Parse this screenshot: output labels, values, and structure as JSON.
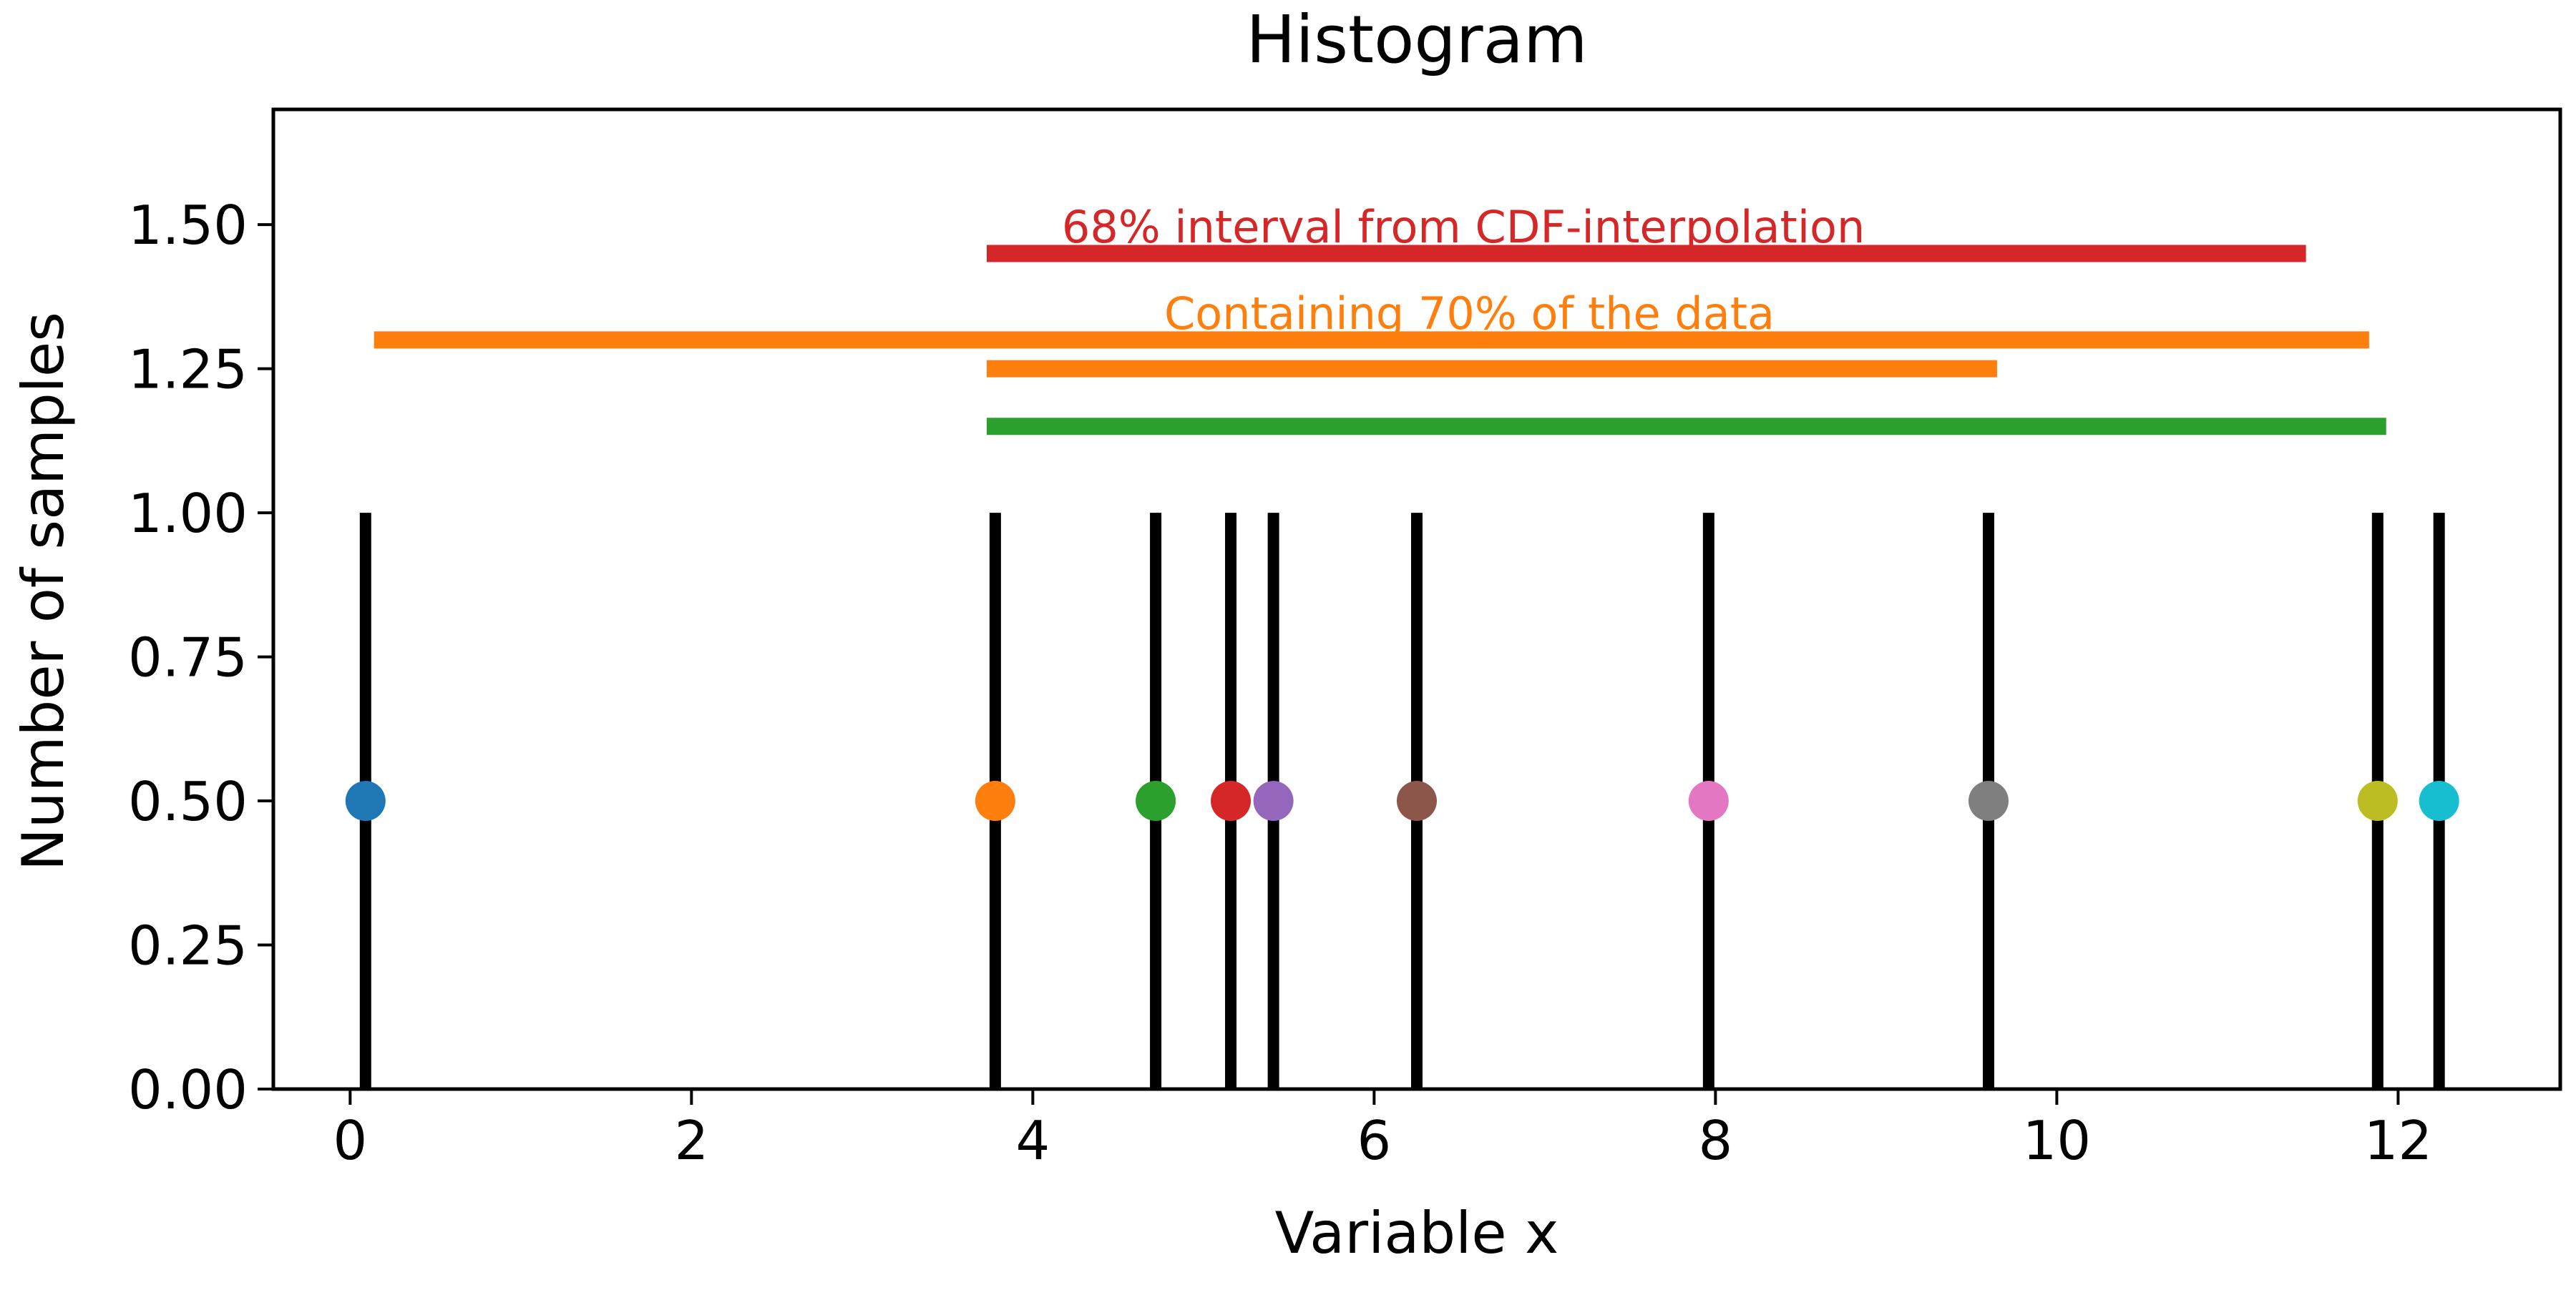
{
  "chart_data": {
    "type": "histogram",
    "title": "Histogram",
    "xlabel": "Variable x",
    "ylabel": "Number of samples",
    "xlim": [
      -0.45,
      12.95
    ],
    "ylim": [
      0,
      1.7
    ],
    "x_ticks": [
      0,
      2,
      4,
      6,
      8,
      10,
      12
    ],
    "x_tick_labels": [
      "0",
      "2",
      "4",
      "6",
      "8",
      "10",
      "12"
    ],
    "y_ticks": [
      0,
      0.25,
      0.5,
      0.75,
      1.0,
      1.25,
      1.5
    ],
    "y_tick_labels": [
      "0.00",
      "0.25",
      "0.50",
      "0.75",
      "1.00",
      "1.25",
      "1.50"
    ],
    "grid": false,
    "samples": [
      0.09,
      3.78,
      4.72,
      5.16,
      5.41,
      6.25,
      7.96,
      9.6,
      11.88,
      12.24
    ],
    "sample_bar_height": 1.0,
    "sample_bar_color": "#000000",
    "markers": [
      {
        "x": 0.09,
        "y": 0.5,
        "color": "#1f77b4"
      },
      {
        "x": 3.78,
        "y": 0.5,
        "color": "#ff7f0e"
      },
      {
        "x": 4.72,
        "y": 0.5,
        "color": "#2ca02c"
      },
      {
        "x": 5.16,
        "y": 0.5,
        "color": "#d62728"
      },
      {
        "x": 5.41,
        "y": 0.5,
        "color": "#9467bd"
      },
      {
        "x": 6.25,
        "y": 0.5,
        "color": "#8c564b"
      },
      {
        "x": 7.96,
        "y": 0.5,
        "color": "#e377c2"
      },
      {
        "x": 9.6,
        "y": 0.5,
        "color": "#7f7f7f"
      },
      {
        "x": 11.88,
        "y": 0.5,
        "color": "#bcbd22"
      },
      {
        "x": 12.24,
        "y": 0.5,
        "color": "#17becf"
      }
    ],
    "intervals": [
      {
        "x_start": 3.73,
        "x_end": 11.46,
        "y": 1.45,
        "color": "#d62728"
      },
      {
        "x_start": 0.14,
        "x_end": 11.83,
        "y": 1.3,
        "color": "#ff7f0e"
      },
      {
        "x_start": 3.73,
        "x_end": 9.65,
        "y": 1.25,
        "color": "#ff7f0e"
      },
      {
        "x_start": 3.73,
        "x_end": 11.93,
        "y": 1.15,
        "color": "#2ca02c"
      }
    ],
    "annotations": [
      {
        "text": "68% interval from CDF-interpolation",
        "x": 4.17,
        "y": 1.5,
        "color": "#d62728"
      },
      {
        "text": "Containing 70% of the data",
        "x": 4.77,
        "y": 1.35,
        "color": "#ff7f0e"
      }
    ]
  }
}
